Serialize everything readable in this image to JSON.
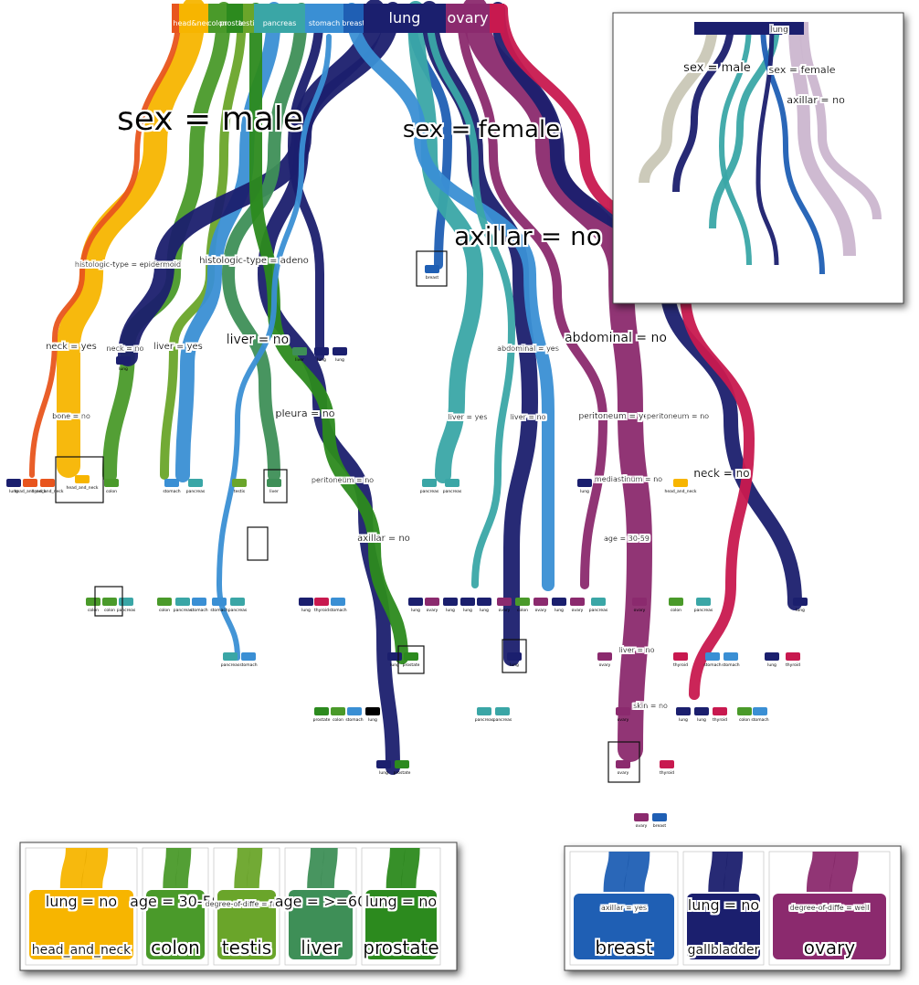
{
  "colors": {
    "head_and_neck": "#f7b500",
    "colon": "#4a9a2a",
    "testis": "#6aa52a",
    "liver": "#3e8f57",
    "prostate": "#2c8a1e",
    "pancreas": "#3aa6a6",
    "stomach": "#3a8fd4",
    "breast": "#1f5fb4",
    "lung": "#1b1f6e",
    "gallbladder": "#1b1f6e",
    "ovary": "#8b2a6e",
    "thyroid": "#c8194f",
    "orange_red": "#e8551e",
    "gray_inset": "#c9c7b6"
  },
  "top_classes": [
    {
      "label": "",
      "color_key": "orange_red"
    },
    {
      "label": "head&neck",
      "color_key": "head_and_neck"
    },
    {
      "label": "colon",
      "color_key": "colon"
    },
    {
      "label": "prostate",
      "color_key": "prostate"
    },
    {
      "label": "testis",
      "color_key": "testis"
    },
    {
      "label": "pancreas",
      "color_key": "pancreas"
    },
    {
      "label": "stomach",
      "color_key": "stomach"
    },
    {
      "label": "breast",
      "color_key": "breast"
    },
    {
      "label": "lung",
      "color_key": "lung"
    },
    {
      "label": "ovary",
      "color_key": "ovary"
    },
    {
      "label": "",
      "color_key": "thyroid"
    }
  ],
  "split_labels": {
    "sex_male": "sex = male",
    "sex_female": "sex = female",
    "axillar_no": "axillar = no",
    "histologic_epidermoid": "histologic-type = epidermoid",
    "histologic_adeno": "histologic-type = adeno",
    "abdominal_no": "abdominal = no",
    "abdominal_yes": "abdominal = yes",
    "neck_yes": "neck = yes",
    "neck_no_left": "neck = no",
    "liver_yes": "liver = yes",
    "liver_no": "liver = no",
    "bone_no": "bone = no",
    "pleura_no": "pleura = no",
    "peritoneum_no": "peritoneum = no",
    "axillar_no_2": "axillar = no",
    "liver_yes_right": "liver = yes",
    "liver_no_right": "liver = no",
    "peritoneum_yes": "peritoneum = yes",
    "peritoneum_no_right": "peritoneum = no",
    "mediastinum_no": "mediastinum = no",
    "neck_no_right": "neck = no",
    "age_30_59": "age = 30-59",
    "liver_no_ovary": "liver = no",
    "skin_no": "skin = no",
    "axillar_yes": "axillar = yes",
    "lung_no": "lung = no"
  },
  "leaf_labels": {
    "lung": "lung",
    "head_and_neck": "head_and_neck",
    "colon": "colon",
    "liver": "liver",
    "testis": "testis",
    "breast": "breast",
    "pancreas": "pancreas",
    "ovary": "ovary",
    "prostate": "prostate",
    "kidney": "kidney",
    "thyroid": "thyroid",
    "stomach": "stomach",
    "gallbladder": "gallbladder"
  },
  "inset_top_right": {
    "labels": {
      "top": "lung",
      "sex_male": "sex = male",
      "sex_female": "sex = female",
      "axillar_no": "axillar = no"
    }
  },
  "zoom_left": [
    {
      "split": "lung = no",
      "leaf": "head_and_neck",
      "color_key": "head_and_neck"
    },
    {
      "split": "age = 30-59",
      "leaf": "colon",
      "color_key": "colon"
    },
    {
      "split": "degree-of-diffe = fairly",
      "leaf": "testis",
      "color_key": "testis"
    },
    {
      "split": "age = >=60",
      "leaf": "liver",
      "color_key": "liver"
    },
    {
      "split": "lung = no",
      "leaf": "prostate",
      "color_key": "prostate"
    }
  ],
  "zoom_right": [
    {
      "split": "axillar = yes",
      "leaf": "breast",
      "color_key": "breast"
    },
    {
      "split": "lung = no",
      "leaf": "gallbladder",
      "color_key": "gallbladder"
    },
    {
      "split": "degree-of-diffe = well",
      "leaf": "ovary",
      "color_key": "ovary"
    }
  ]
}
